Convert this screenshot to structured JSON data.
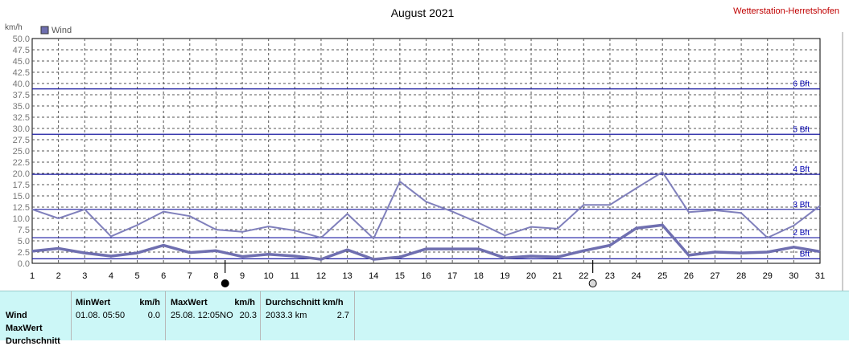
{
  "title": "August 2021",
  "station": "Wetterstation-Herretshofen",
  "unit": "km/h",
  "legend": {
    "label": "Wind",
    "color": "#6f6fb0"
  },
  "beaufort": [
    {
      "label": "6 Bft",
      "value": 38.8
    },
    {
      "label": "5 Bft",
      "value": 28.7
    },
    {
      "label": "4 Bft",
      "value": 19.8
    },
    {
      "label": "3 Bft",
      "value": 12.0
    },
    {
      "label": "2 Bft",
      "value": 5.7
    },
    {
      "label": "Bft",
      "value": 1.0
    }
  ],
  "moon_icons": [
    {
      "day": 8.5,
      "icon": "new-moon-icon"
    },
    {
      "day": 22.5,
      "icon": "full-moon-icon"
    }
  ],
  "chart_data": {
    "type": "line",
    "x": [
      1,
      2,
      3,
      4,
      5,
      6,
      7,
      8,
      9,
      10,
      11,
      12,
      13,
      14,
      15,
      16,
      17,
      18,
      19,
      20,
      21,
      22,
      23,
      24,
      25,
      26,
      27,
      28,
      29,
      30,
      31
    ],
    "xticks": [
      "1",
      "2",
      "3",
      "4",
      "5",
      "6",
      "7",
      "8",
      "9",
      "10",
      "11",
      "12",
      "13",
      "14",
      "15",
      "16",
      "17",
      "18",
      "19",
      "20",
      "21",
      "22",
      "23",
      "24",
      "25",
      "26",
      "27",
      "28",
      "29",
      "30",
      "31"
    ],
    "yticks": [
      "0.0",
      "2.5",
      "5.0",
      "7.5",
      "10.0",
      "12.5",
      "15.0",
      "17.5",
      "20.0",
      "22.5",
      "25.0",
      "27.5",
      "30.0",
      "32.5",
      "35.0",
      "37.5",
      "40.0",
      "42.5",
      "45.0",
      "47.5",
      "50.0"
    ],
    "ylim": [
      0,
      50
    ],
    "xlim": [
      1,
      31
    ],
    "grid": true,
    "series": [
      {
        "name": "MaxWert",
        "color": "#8080bc",
        "width": 2,
        "values": [
          12.0,
          10.0,
          12.0,
          6.0,
          8.5,
          11.5,
          10.5,
          7.5,
          7.0,
          8.2,
          7.3,
          5.7,
          11.0,
          5.5,
          18.2,
          13.7,
          11.5,
          9.0,
          6.2,
          8.1,
          7.7,
          13.0,
          13.0,
          16.7,
          20.3,
          11.4,
          11.8,
          11.2,
          5.7,
          8.4,
          12.8
        ]
      },
      {
        "name": "Wind",
        "color": "#6f6fb0",
        "width": 3.5,
        "values": [
          2.7,
          3.3,
          2.3,
          1.6,
          2.3,
          4.0,
          2.4,
          2.8,
          1.5,
          2.0,
          1.6,
          0.9,
          3.0,
          0.9,
          1.4,
          3.2,
          3.2,
          3.2,
          1.2,
          1.6,
          1.4,
          2.8,
          4.0,
          7.8,
          8.5,
          1.8,
          2.5,
          2.3,
          2.5,
          3.6,
          2.6
        ]
      }
    ]
  },
  "stats": {
    "rows": [
      "Wind",
      "MaxWert",
      "Durchschnitt"
    ],
    "min_header": "MinWert",
    "min_unit": "km/h",
    "min_date": "01.08.  05:50",
    "min_value": "0.0",
    "max_header": "MaxWert",
    "max_unit": "km/h",
    "max_date": "25.08.  12:05NO",
    "max_value": "20.3",
    "avg_header": "Durchschnitt km/h",
    "avg_total": "2033.3 km",
    "avg_value": "2.7"
  }
}
